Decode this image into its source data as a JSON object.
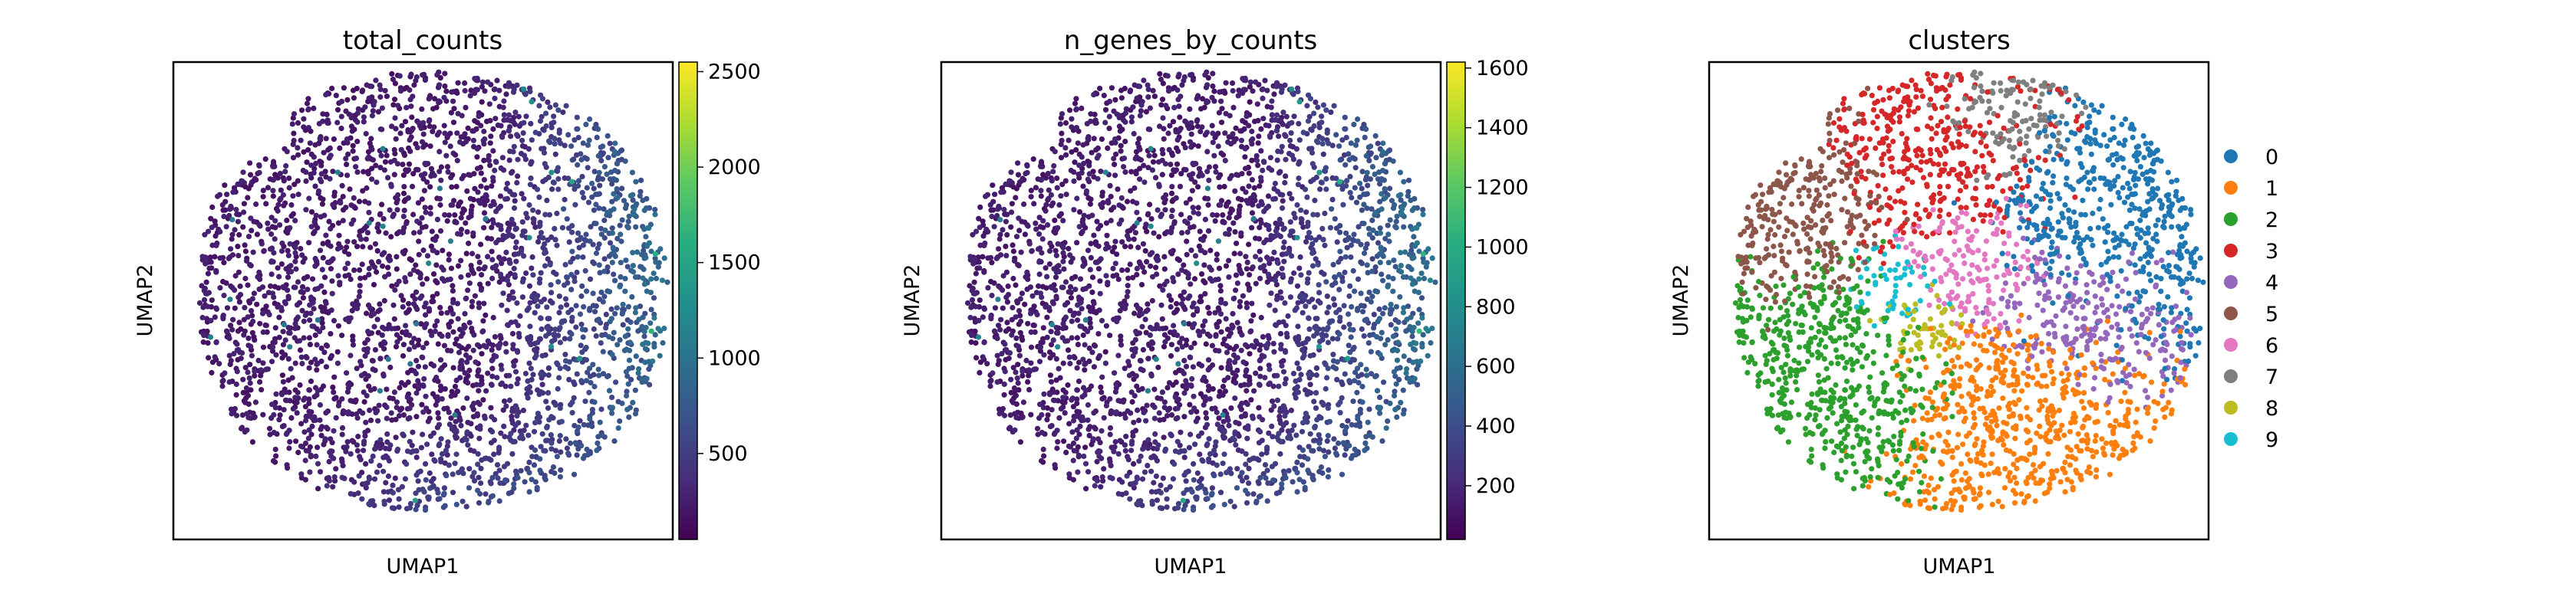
{
  "chart_data": [
    {
      "type": "scatter",
      "title": "total_counts",
      "xlabel": "UMAP1",
      "ylabel": "UMAP2",
      "colormap": "viridis",
      "colorbar": {
        "range": [
          50,
          2550
        ],
        "ticks": [
          500,
          1000,
          1500,
          2000,
          2500
        ],
        "tick_labels": [
          "500",
          "1000",
          "1500",
          "2000",
          "2500"
        ]
      },
      "x_ticks": "none",
      "y_ticks": "none",
      "approx_points": 3000,
      "point_color_pattern": "low values across most cells; higher values on the right/east edge and near the bottom"
    },
    {
      "type": "scatter",
      "title": "n_genes_by_counts",
      "xlabel": "UMAP1",
      "ylabel": "UMAP2",
      "colormap": "viridis",
      "colorbar": {
        "range": [
          20,
          1620
        ],
        "ticks": [
          200,
          400,
          600,
          800,
          1000,
          1200,
          1400,
          1600
        ],
        "tick_labels": [
          "200",
          "400",
          "600",
          "800",
          "1000",
          "1200",
          "1400",
          "1600"
        ]
      },
      "x_ticks": "none",
      "y_ticks": "none",
      "approx_points": 3000,
      "point_color_pattern": "same pattern as total_counts"
    },
    {
      "type": "scatter",
      "title": "clusters",
      "xlabel": "UMAP1",
      "ylabel": "UMAP2",
      "x_ticks": "none",
      "y_ticks": "none",
      "legend": {
        "placement": "right",
        "entries": [
          {
            "label": "0",
            "color": "#1f77b4"
          },
          {
            "label": "1",
            "color": "#ff7f0e"
          },
          {
            "label": "2",
            "color": "#2ca02c"
          },
          {
            "label": "3",
            "color": "#d62728"
          },
          {
            "label": "4",
            "color": "#9467bd"
          },
          {
            "label": "5",
            "color": "#8c564b"
          },
          {
            "label": "6",
            "color": "#e377c2"
          },
          {
            "label": "7",
            "color": "#7f7f7f"
          },
          {
            "label": "8",
            "color": "#bcbd22"
          },
          {
            "label": "9",
            "color": "#17becf"
          }
        ]
      },
      "cluster_regions": [
        {
          "label": "0",
          "region": "upper right"
        },
        {
          "label": "1",
          "region": "bottom center"
        },
        {
          "label": "2",
          "region": "left and lower left"
        },
        {
          "label": "3",
          "region": "top center"
        },
        {
          "label": "4",
          "region": "center right"
        },
        {
          "label": "5",
          "region": "upper left"
        },
        {
          "label": "6",
          "region": "center"
        },
        {
          "label": "7",
          "region": "top"
        },
        {
          "label": "8",
          "region": "sparse, mixed"
        },
        {
          "label": "9",
          "region": "sparse, mixed"
        }
      ]
    }
  ]
}
